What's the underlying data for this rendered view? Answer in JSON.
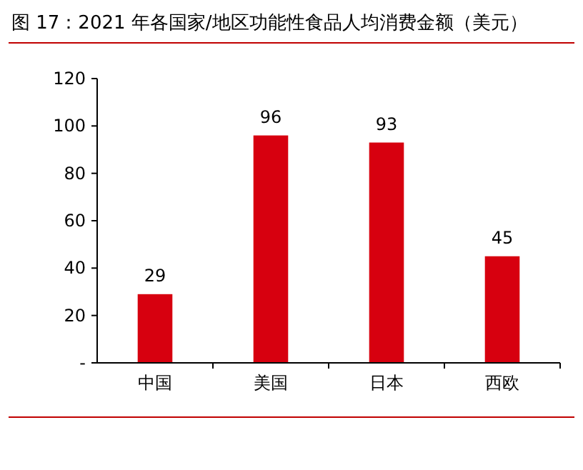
{
  "chart_data": {
    "type": "bar",
    "title": "图 17：2021 年各国家/地区功能性食品人均消费金额（美元）",
    "categories": [
      "中国",
      "美国",
      "日本",
      "西欧"
    ],
    "values": [
      29,
      96,
      93,
      45
    ],
    "color": "#d7000f",
    "ylim": [
      0,
      120
    ],
    "yticks": [
      {
        "value": 0,
        "label": "-"
      },
      20,
      40,
      60,
      80,
      100,
      120
    ],
    "data_labels": true,
    "grid": false
  }
}
